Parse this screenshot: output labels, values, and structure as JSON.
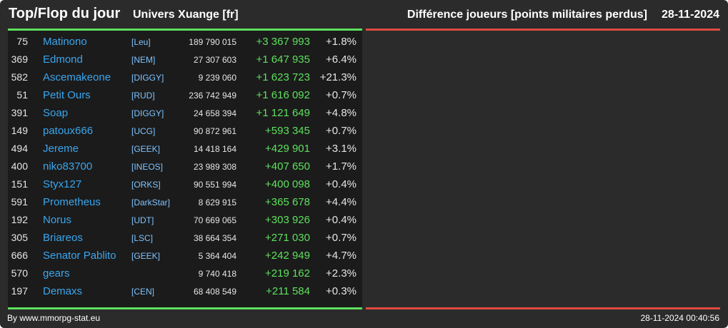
{
  "header": {
    "title": "Top/Flop du jour",
    "universe": "Univers Xuange [fr]",
    "metric": "Différence joueurs [points militaires perdus]",
    "date": "28-11-2024"
  },
  "colors": {
    "background": "#2b2b2b",
    "panel": "#1b1b1b",
    "top_accent": "#5ee05e",
    "flop_accent": "#e0493f",
    "player_link": "#3aa6ee",
    "alliance_link": "#7ec3ff",
    "positive_diff": "#5ee05e"
  },
  "top_rows": [
    {
      "rank": "75",
      "player": "Matinono",
      "alliance": "[Leu]",
      "points": "189 790 015",
      "diff": "+3 367 993",
      "pct": "+1.8%"
    },
    {
      "rank": "369",
      "player": "Edmond",
      "alliance": "[NEM]",
      "points": "27 307 603",
      "diff": "+1 647 935",
      "pct": "+6.4%"
    },
    {
      "rank": "582",
      "player": "Ascemakeone",
      "alliance": "[DIGGY]",
      "points": "9 239 060",
      "diff": "+1 623 723",
      "pct": "+21.3%"
    },
    {
      "rank": "51",
      "player": "Petit Ours",
      "alliance": "[RUD]",
      "points": "236 742 949",
      "diff": "+1 616 092",
      "pct": "+0.7%"
    },
    {
      "rank": "391",
      "player": "Soap",
      "alliance": "[DIGGY]",
      "points": "24 658 394",
      "diff": "+1 121 649",
      "pct": "+4.8%"
    },
    {
      "rank": "149",
      "player": "patoux666",
      "alliance": "[UCG]",
      "points": "90 872 961",
      "diff": "+593 345",
      "pct": "+0.7%"
    },
    {
      "rank": "494",
      "player": "Jereme",
      "alliance": "[GEEK]",
      "points": "14 418 164",
      "diff": "+429 901",
      "pct": "+3.1%"
    },
    {
      "rank": "400",
      "player": "niko83700",
      "alliance": "[INEOS]",
      "points": "23 989 308",
      "diff": "+407 650",
      "pct": "+1.7%"
    },
    {
      "rank": "151",
      "player": "Styx127",
      "alliance": "[ORKS]",
      "points": "90 551 994",
      "diff": "+400 098",
      "pct": "+0.4%"
    },
    {
      "rank": "591",
      "player": "Prometheus",
      "alliance": "[DarkStar]",
      "points": "8 629 915",
      "diff": "+365 678",
      "pct": "+4.4%"
    },
    {
      "rank": "192",
      "player": "Norus",
      "alliance": "[UDT]",
      "points": "70 669 065",
      "diff": "+303 926",
      "pct": "+0.4%"
    },
    {
      "rank": "305",
      "player": "Briareos",
      "alliance": "[LSC]",
      "points": "38 664 354",
      "diff": "+271 030",
      "pct": "+0.7%"
    },
    {
      "rank": "666",
      "player": "Senator Pablito",
      "alliance": "[GEEK]",
      "points": "5 364 404",
      "diff": "+242 949",
      "pct": "+4.7%"
    },
    {
      "rank": "570",
      "player": "gears",
      "alliance": "",
      "points": "9 740 418",
      "diff": "+219 162",
      "pct": "+2.3%"
    },
    {
      "rank": "197",
      "player": "Demaxs",
      "alliance": "[CEN]",
      "points": "68 408 549",
      "diff": "+211 584",
      "pct": "+0.3%"
    }
  ],
  "footer": {
    "credit": "By www.mmorpg-stat.eu",
    "timestamp": "28-11-2024 00:40:56"
  }
}
